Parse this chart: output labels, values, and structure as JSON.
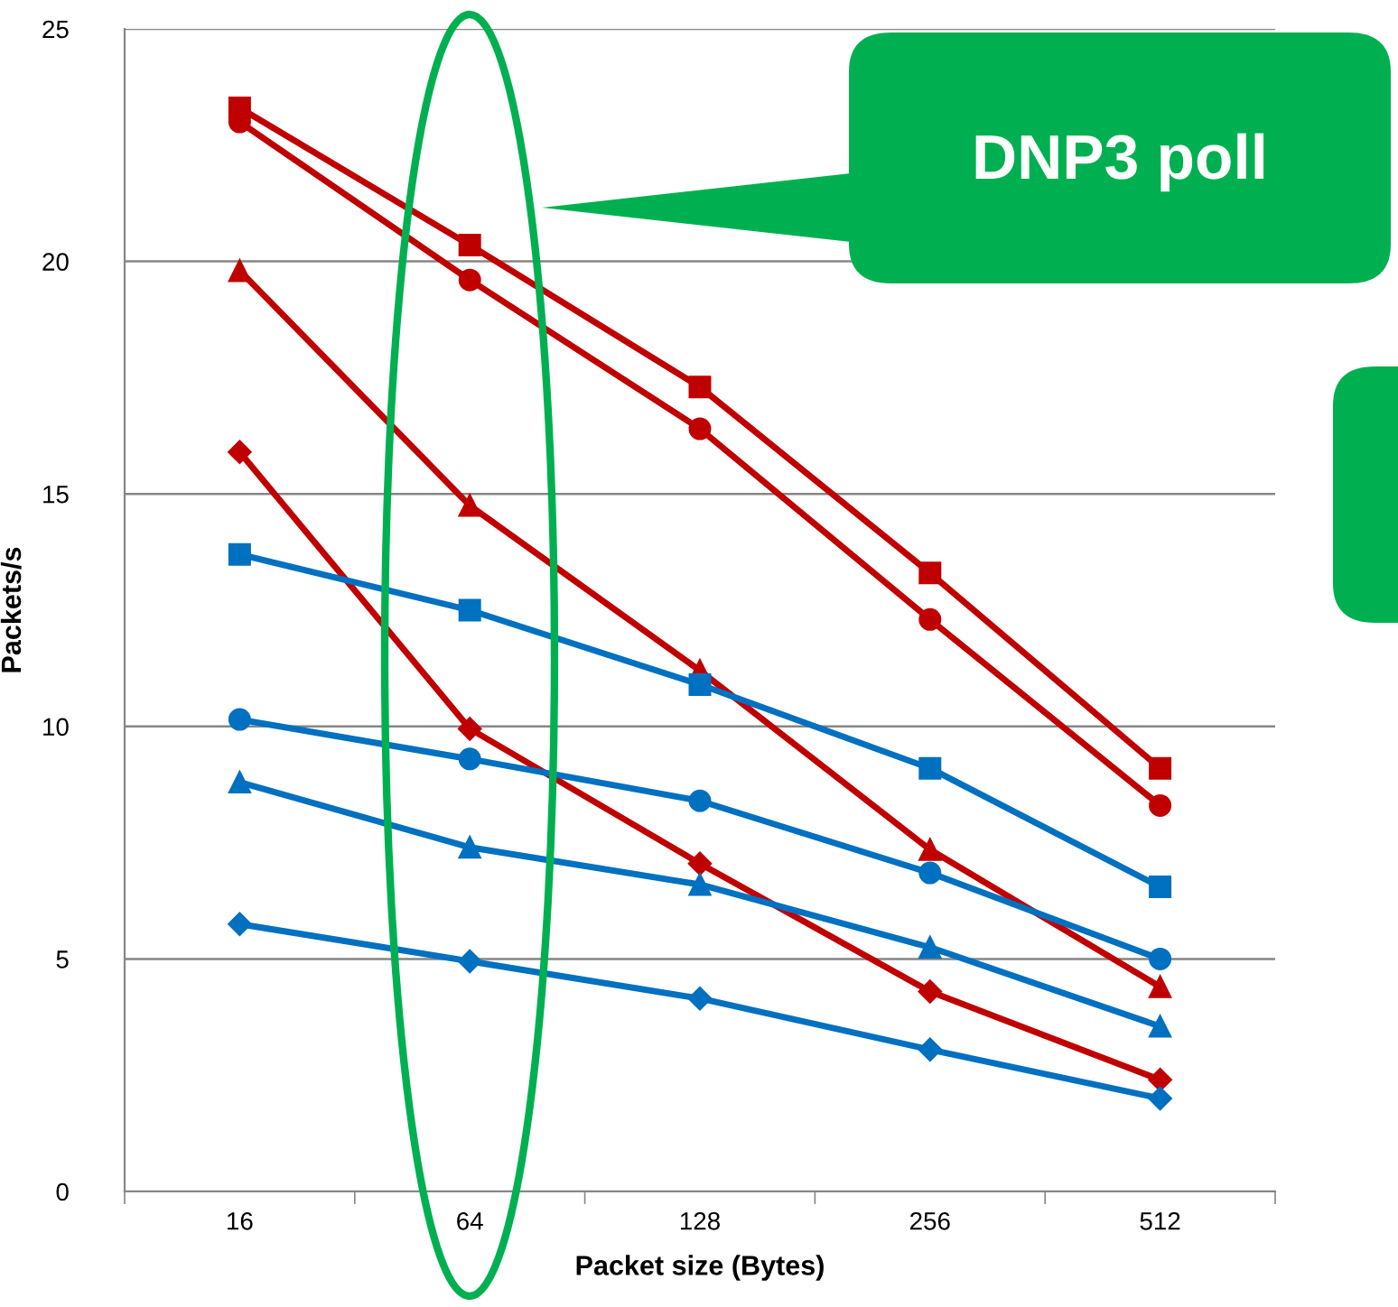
{
  "chart_data": {
    "type": "line",
    "xlabel": "Packet size (Bytes)",
    "ylabel": "Packets/s",
    "categories": [
      "16",
      "64",
      "128",
      "256",
      "512"
    ],
    "series": [
      {
        "color": "#c00000",
        "marker": "square",
        "values": [
          23.3,
          20.35,
          17.3,
          13.3,
          9.1
        ]
      },
      {
        "color": "#c00000",
        "marker": "circle",
        "values": [
          23.0,
          19.6,
          16.4,
          12.3,
          8.3
        ]
      },
      {
        "color": "#c00000",
        "marker": "triangle",
        "values": [
          19.8,
          14.75,
          11.2,
          7.35,
          4.4
        ]
      },
      {
        "color": "#c00000",
        "marker": "diamond",
        "values": [
          15.9,
          9.95,
          7.05,
          4.3,
          2.4
        ]
      },
      {
        "color": "#0070c0",
        "marker": "square",
        "values": [
          13.7,
          12.5,
          10.9,
          9.1,
          6.55
        ]
      },
      {
        "color": "#0070c0",
        "marker": "circle",
        "values": [
          10.15,
          9.3,
          8.4,
          6.85,
          5.0
        ]
      },
      {
        "color": "#0070c0",
        "marker": "triangle",
        "values": [
          8.8,
          7.4,
          6.6,
          5.25,
          3.55
        ]
      },
      {
        "color": "#0070c0",
        "marker": "diamond",
        "values": [
          5.75,
          4.95,
          4.15,
          3.05,
          2.0
        ]
      }
    ],
    "ylim": [
      0,
      25
    ],
    "yticks": [
      0,
      5,
      10,
      15,
      20,
      25
    ],
    "grid": "y",
    "line_style": "solid",
    "annotations": [
      "DNP3 poll"
    ]
  }
}
